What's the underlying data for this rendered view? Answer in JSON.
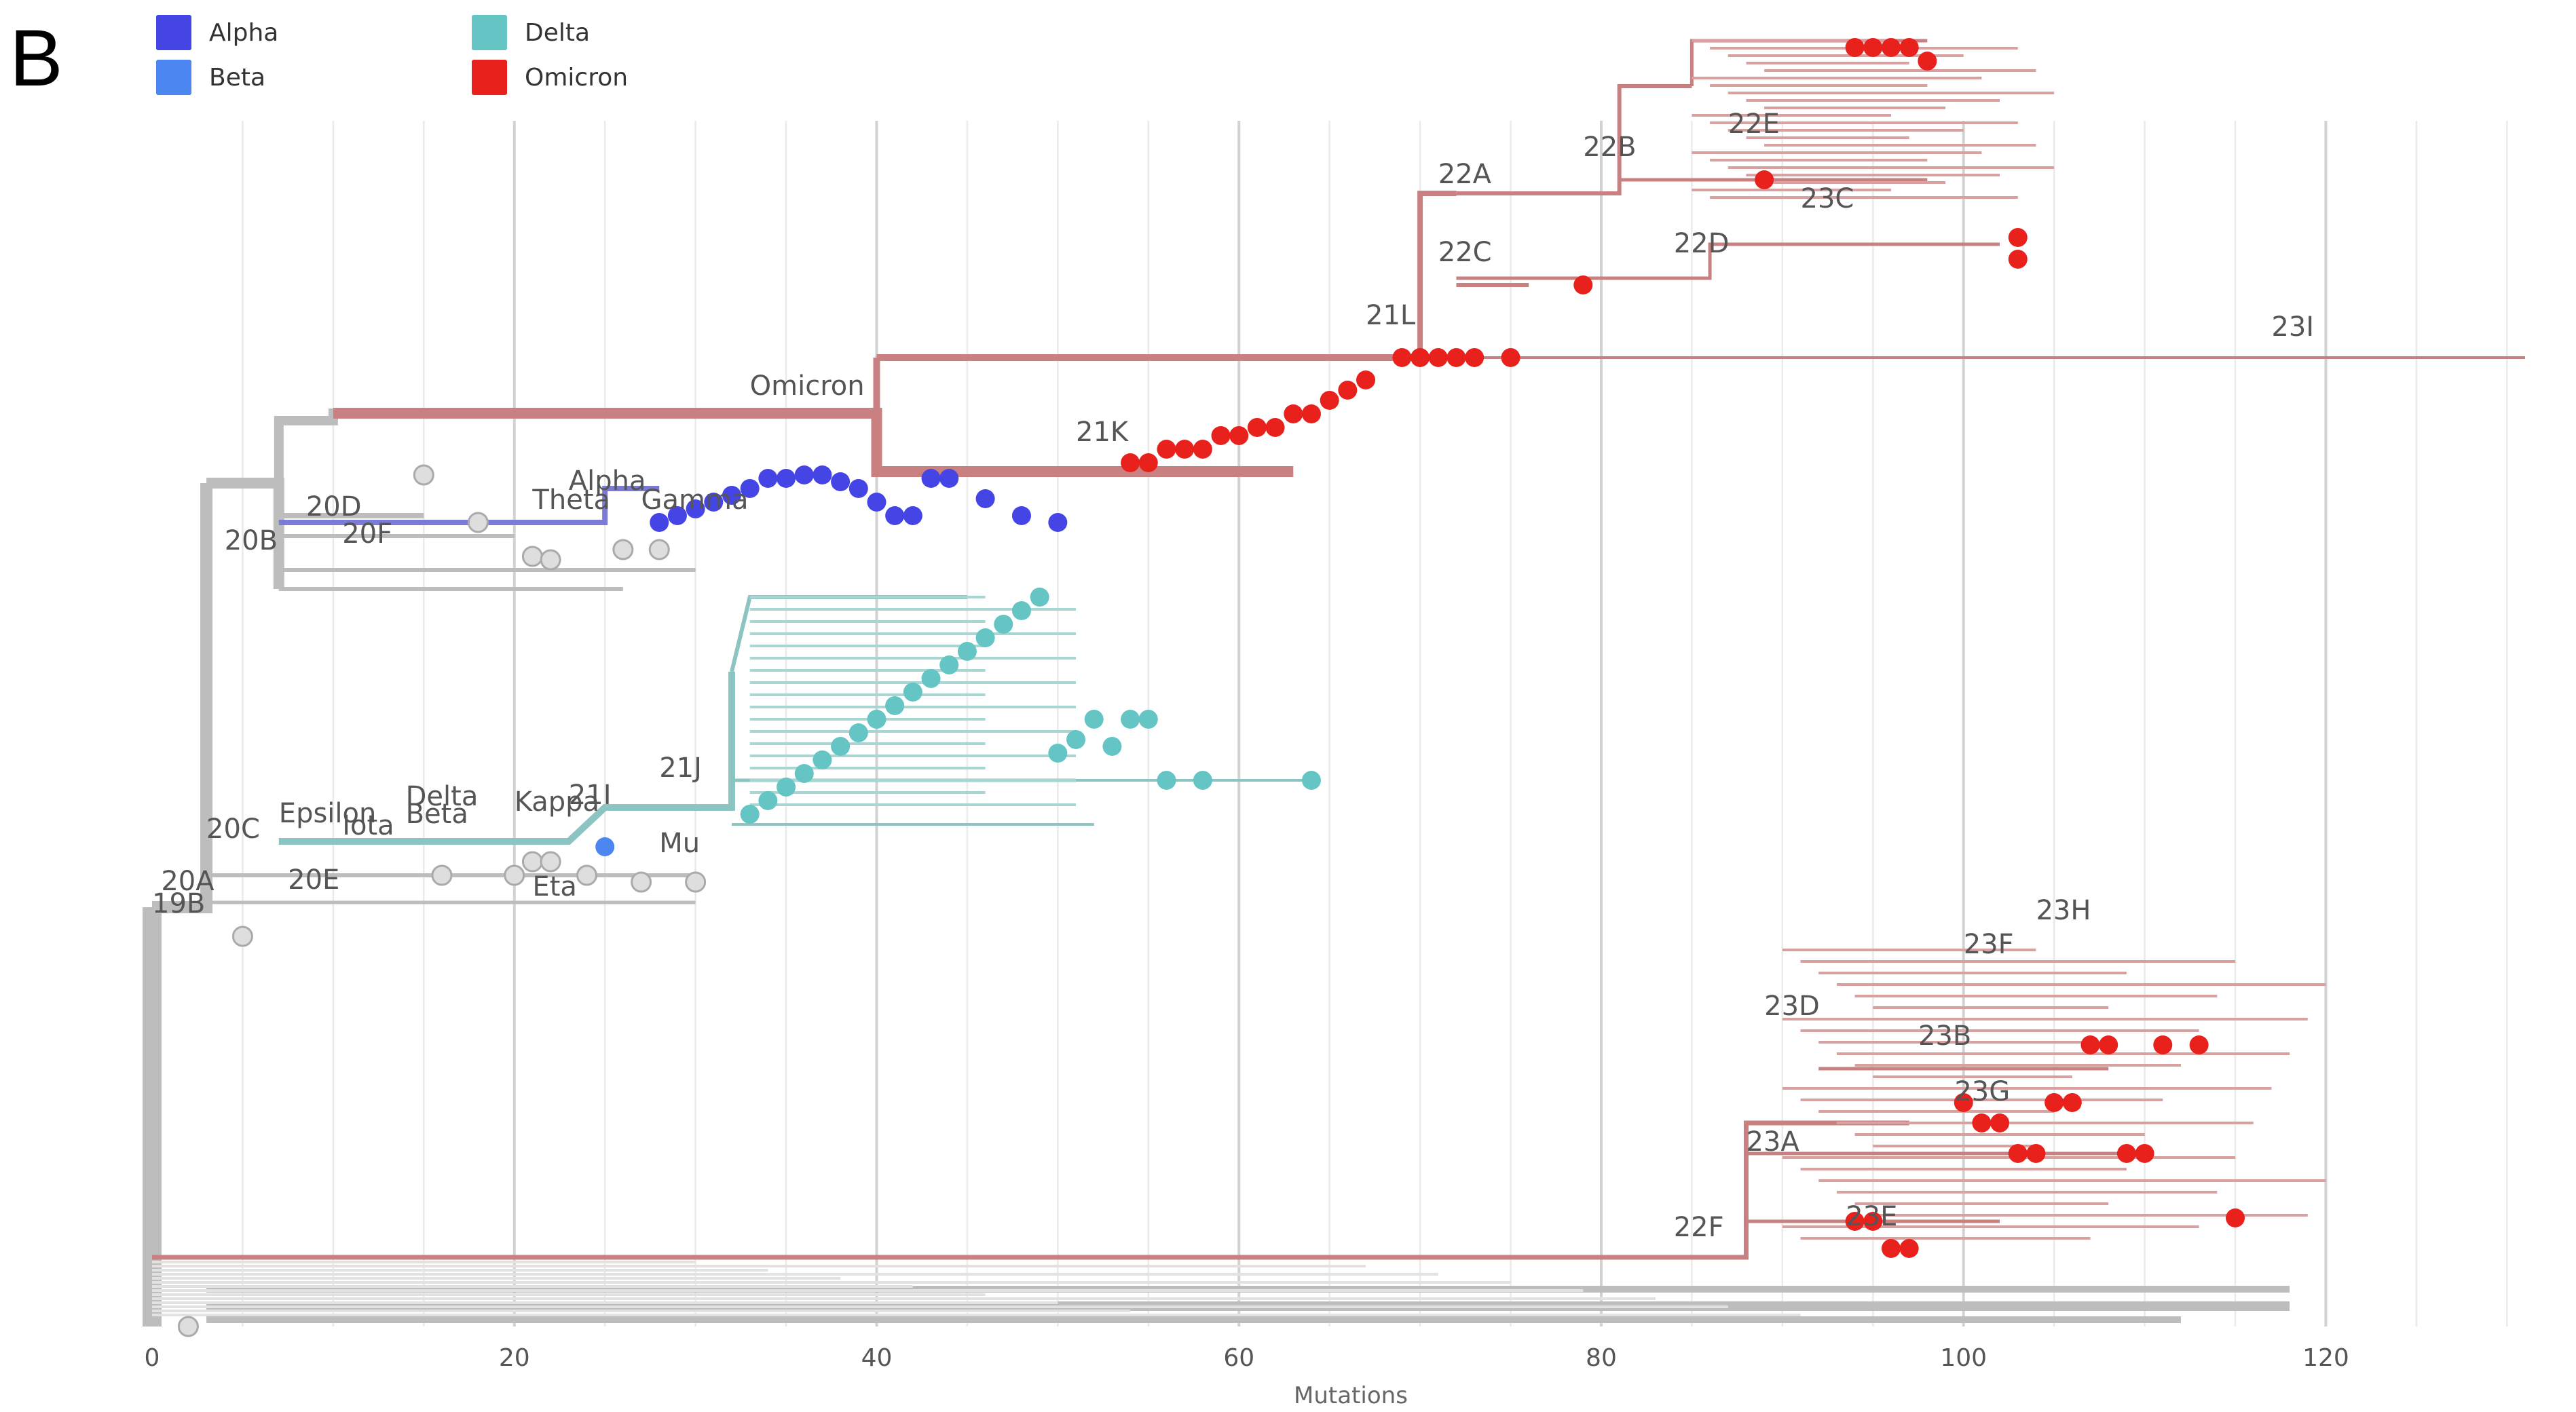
{
  "panel_label": "B",
  "legend": [
    {
      "label": "Alpha",
      "color": "#4545E6"
    },
    {
      "label": "Beta",
      "color": "#4C86F0"
    },
    {
      "label": "Delta",
      "color": "#65C5C5"
    },
    {
      "label": "Omicron",
      "color": "#E8211D"
    }
  ],
  "colors": {
    "branch_gray": "#BDBDBD",
    "branch_omicron": "#C98080",
    "branch_alpha": "#7B7BD6",
    "branch_delta": "#8CC4C2",
    "gridline": "#DCDCDC",
    "tip_gray": "#DEDEDE",
    "label_text": "#555555"
  },
  "chart_data": {
    "type": "scatter",
    "subtype": "phylogenetic-tree",
    "title": "",
    "xlabel": "Mutations",
    "ylabel": "",
    "xlim": [
      0,
      131
    ],
    "x_ticks": [
      0,
      20,
      40,
      60,
      80,
      100,
      120
    ],
    "x_tick_labels": [
      "0",
      "20",
      "40",
      "60",
      "80",
      "100",
      "120"
    ],
    "grid": true,
    "legend_position": "top-left",
    "clade_labels": [
      {
        "name": "19B",
        "x": 0
      },
      {
        "name": "20A",
        "x": 0.5
      },
      {
        "name": "20B",
        "x": 4
      },
      {
        "name": "20C",
        "x": 3
      },
      {
        "name": "20D",
        "x": 8.5
      },
      {
        "name": "20E",
        "x": 7.5
      },
      {
        "name": "20F",
        "x": 10.5
      },
      {
        "name": "21I",
        "x": 23
      },
      {
        "name": "21J",
        "x": 28
      },
      {
        "name": "21K",
        "x": 51
      },
      {
        "name": "21L",
        "x": 67
      },
      {
        "name": "22A",
        "x": 71
      },
      {
        "name": "22B",
        "x": 79
      },
      {
        "name": "22C",
        "x": 71
      },
      {
        "name": "22D",
        "x": 84
      },
      {
        "name": "22E",
        "x": 87
      },
      {
        "name": "22F",
        "x": 84
      },
      {
        "name": "23A",
        "x": 88
      },
      {
        "name": "23B",
        "x": 97.5
      },
      {
        "name": "23C",
        "x": 91
      },
      {
        "name": "23D",
        "x": 89
      },
      {
        "name": "23E",
        "x": 93.5
      },
      {
        "name": "23F",
        "x": 100
      },
      {
        "name": "23G",
        "x": 99.5
      },
      {
        "name": "23H",
        "x": 104
      },
      {
        "name": "23I",
        "x": 117
      },
      {
        "name": "Omicron",
        "x": 33
      },
      {
        "name": "Alpha",
        "x": 23
      },
      {
        "name": "Delta",
        "x": 14
      },
      {
        "name": "Beta",
        "x": 14
      },
      {
        "name": "Kappa",
        "x": 20
      },
      {
        "name": "Epsilon",
        "x": 7
      },
      {
        "name": "Iota",
        "x": 10.5
      },
      {
        "name": "Eta",
        "x": 21
      },
      {
        "name": "Mu",
        "x": 28
      },
      {
        "name": "Theta",
        "x": 21
      },
      {
        "name": "Gamma",
        "x": 27
      }
    ],
    "series": [
      {
        "name": "Alpha",
        "values": [
          28,
          29,
          30,
          31,
          32,
          33,
          34,
          35,
          36,
          37,
          38,
          39,
          40,
          41,
          42,
          43,
          44,
          46,
          48,
          50
        ]
      },
      {
        "name": "Beta",
        "values": [
          25
        ]
      },
      {
        "name": "Delta",
        "values": [
          33,
          34,
          35,
          36,
          37,
          38,
          39,
          40,
          41,
          42,
          43,
          44,
          45,
          46,
          47,
          48,
          49,
          50,
          51,
          52,
          53,
          54,
          55,
          56,
          58,
          64
        ]
      },
      {
        "name": "Omicron",
        "values": [
          54,
          55,
          56,
          57,
          58,
          59,
          60,
          61,
          62,
          63,
          64,
          65,
          66,
          67,
          69,
          70,
          71,
          72,
          73,
          75,
          79,
          89,
          94,
          95,
          96,
          97,
          98,
          100,
          101,
          102,
          103,
          104,
          105,
          106,
          107,
          108,
          109,
          110,
          111,
          113,
          115
        ]
      }
    ]
  }
}
